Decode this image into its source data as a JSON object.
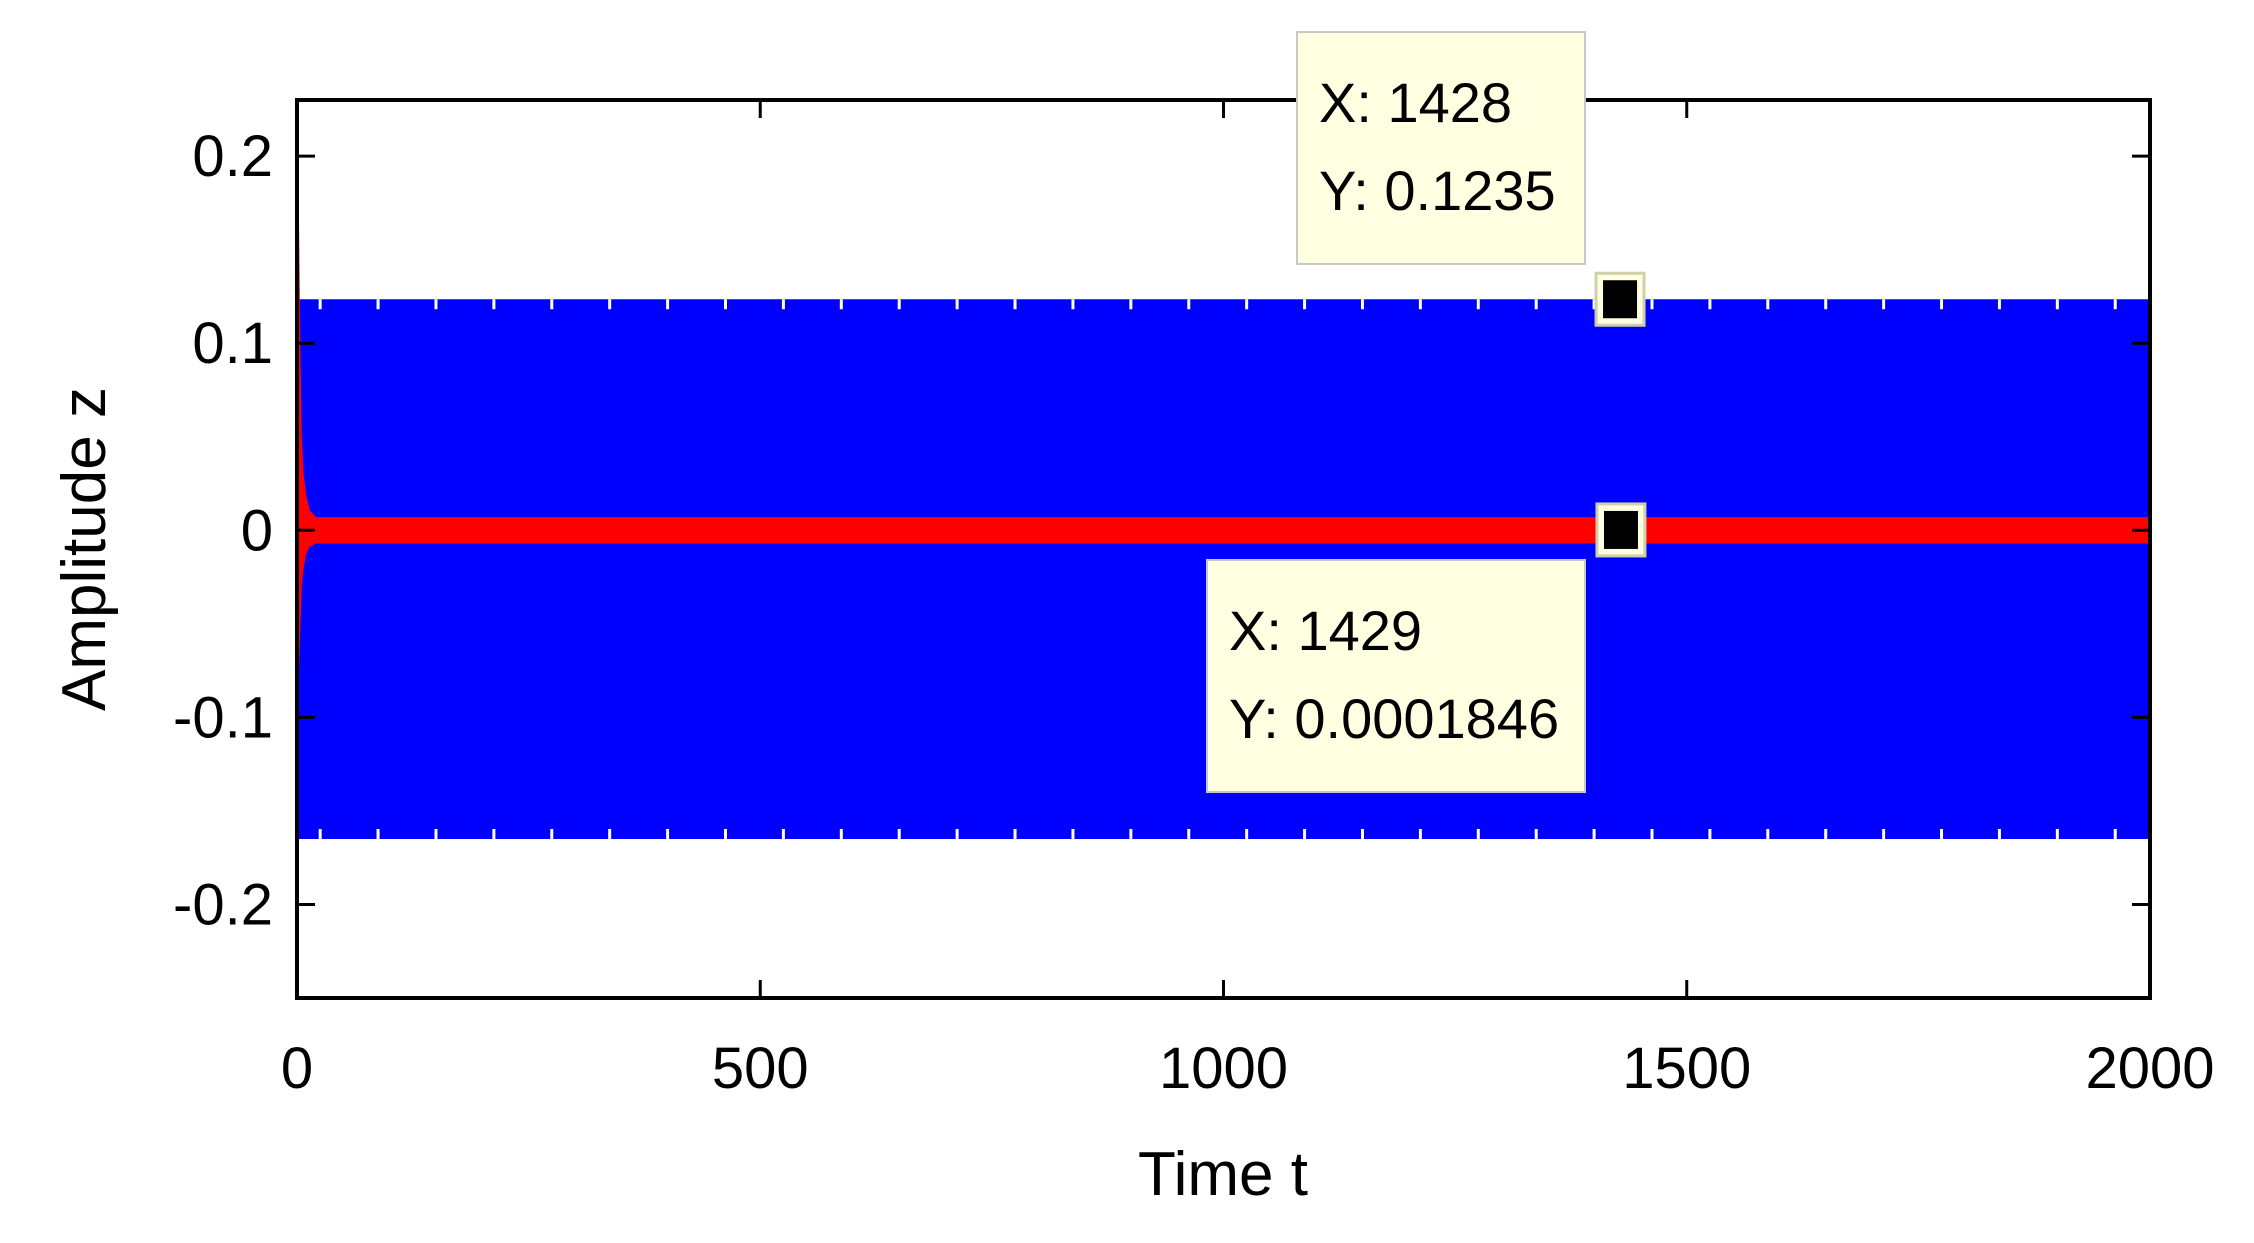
{
  "chart_data": {
    "type": "line",
    "xlabel": "Time t",
    "ylabel": "Amplitude z",
    "xlim": [
      0,
      2000
    ],
    "ylim": [
      -0.25,
      0.23
    ],
    "xticks": [
      0,
      500,
      1000,
      1500,
      2000
    ],
    "xtick_labels": [
      "0",
      "500",
      "1000",
      "1500",
      "2000"
    ],
    "yticks": [
      0.2,
      0.1,
      0,
      -0.1,
      -0.2
    ],
    "ytick_labels": [
      "0.2",
      "0.1",
      "0",
      "-0.1",
      "-0.2"
    ],
    "grid": false,
    "series": [
      {
        "color": "#0000ff",
        "description_band": [
          -0.165,
          0.1235
        ],
        "x": [
          0,
          2000
        ],
        "upper": [
          0.1235,
          0.1235
        ],
        "lower": [
          -0.165,
          -0.165
        ]
      },
      {
        "color": "#ff0000",
        "transient": {
          "x": [
            0,
            1,
            2,
            3,
            5,
            8,
            12,
            20
          ],
          "upper": [
            0.165,
            0.12,
            0.08,
            0.05,
            0.03,
            0.018,
            0.01,
            0.006
          ],
          "lower": [
            -0.075,
            -0.06,
            -0.045,
            -0.03,
            -0.02,
            -0.012,
            -0.008,
            -0.006
          ]
        },
        "steady_band": [
          -0.006,
          0.006
        ]
      }
    ],
    "datatips": [
      {
        "x_label": "X: 1428",
        "y_label": "Y: 0.1235",
        "x": 1428,
        "y": 0.1235
      },
      {
        "x_label": "X: 1429",
        "y_label": "Y: 0.0001846",
        "x": 1429,
        "y": 0.0001846
      }
    ]
  }
}
